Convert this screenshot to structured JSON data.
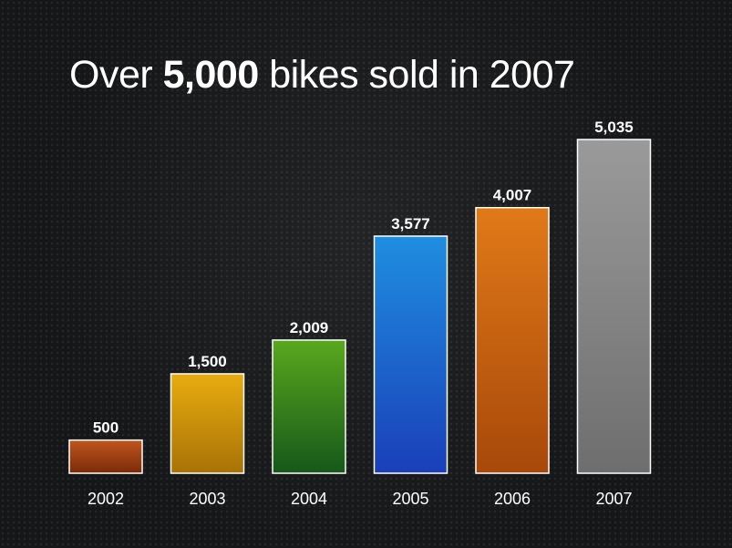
{
  "title": {
    "prefix": "Over ",
    "highlight": "5,000",
    "suffix": " bikes sold in 2007"
  },
  "chart_data": {
    "type": "bar",
    "title": "Over 5,000 bikes sold in 2007",
    "xlabel": "",
    "ylabel": "",
    "categories": [
      "2002",
      "2003",
      "2004",
      "2005",
      "2006",
      "2007"
    ],
    "values": [
      500,
      1500,
      2009,
      3577,
      4007,
      5035
    ],
    "value_labels": [
      "500",
      "1,500",
      "2,009",
      "3,577",
      "4,007",
      "5,035"
    ],
    "ylim": [
      0,
      5035
    ],
    "grid": false,
    "legend": "none",
    "bar_colors": [
      [
        "#c0561e",
        "#7a2a08"
      ],
      [
        "#e8ac10",
        "#a87206"
      ],
      [
        "#5aa81e",
        "#15581a"
      ],
      [
        "#1f8ee0",
        "#1a3fb8"
      ],
      [
        "#e07a18",
        "#a8480a"
      ],
      [
        "#9a9a9a",
        "#6e6e6e"
      ]
    ]
  }
}
